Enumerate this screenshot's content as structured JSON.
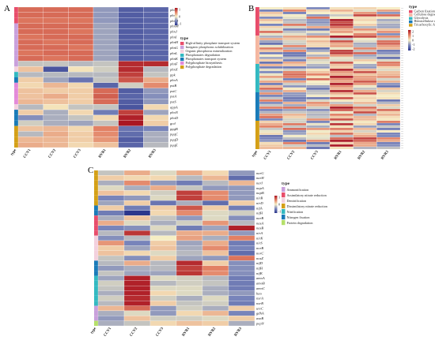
{
  "chart_data": [
    {
      "type": "heatmap",
      "panel_label": "A",
      "columns": [
        "type",
        "CCV1",
        "CCV2",
        "CCV3",
        "RVR1",
        "RVR2",
        "RVR3"
      ],
      "rows": [
        "phoC",
        "phoE",
        "phnD",
        "phnM",
        "phnJ",
        "phnI",
        "phnH",
        "phnG",
        "phnL",
        "phnK",
        "phnF",
        "phnX",
        "ppk",
        "phoA",
        "pstB",
        "pstC",
        "pstA",
        "pstS",
        "appA",
        "phoN",
        "phoD",
        "gcd",
        "ppgB",
        "pqqC",
        "pqqD",
        "pqqE"
      ],
      "row_groups": [
        0,
        0,
        0,
        1,
        1,
        1,
        1,
        1,
        1,
        1,
        1,
        2,
        3,
        4,
        5,
        5,
        5,
        5,
        2,
        4,
        4,
        4,
        6,
        6,
        6,
        6
      ],
      "values": [
        [
          1.2,
          1.2,
          1.2,
          -0.8,
          -1.5,
          -1.4
        ],
        [
          1.2,
          1.2,
          1.2,
          -0.8,
          -1.5,
          -1.4
        ],
        [
          1.1,
          1.1,
          1.1,
          -0.8,
          -1.5,
          -1.4
        ],
        [
          1.2,
          1.2,
          1.2,
          -0.7,
          -1.5,
          -1.4
        ],
        [
          1.2,
          1.2,
          1.1,
          -0.7,
          -1.5,
          -1.4
        ],
        [
          1.1,
          1.2,
          1.2,
          -0.7,
          -1.5,
          -1.4
        ],
        [
          1.2,
          1.1,
          1.2,
          -0.7,
          -1.5,
          -1.4
        ],
        [
          1.2,
          1.2,
          1.1,
          -0.7,
          -1.5,
          -1.4
        ],
        [
          1.1,
          1.2,
          1.2,
          -0.7,
          -1.5,
          -1.4
        ],
        [
          1.2,
          1.1,
          1.2,
          -0.7,
          -1.5,
          -1.4
        ],
        [
          -0.4,
          -0.4,
          -0.5,
          -0.4,
          1.8,
          1.8
        ],
        [
          0.4,
          -1.6,
          0.1,
          -0.3,
          1.8,
          -0.5
        ],
        [
          -0.5,
          -0.5,
          -0.5,
          -0.5,
          1.6,
          -0.4
        ],
        [
          0.3,
          -0.7,
          -1.2,
          -0.4,
          1.4,
          0.6
        ],
        [
          0.2,
          0.5,
          0.2,
          -1.4,
          -0.3,
          0.9
        ],
        [
          0.4,
          0.3,
          0.3,
          1.2,
          -1.5,
          -0.8
        ],
        [
          0.4,
          0.6,
          0.3,
          1.3,
          -1.4,
          -0.9
        ],
        [
          0.5,
          0.4,
          0.3,
          1.2,
          -1.5,
          -0.8
        ],
        [
          -0.5,
          0.1,
          -0.4,
          -0.4,
          -1.6,
          0.2
        ],
        [
          0.3,
          -0.6,
          0.2,
          -1.1,
          1.6,
          -0.7
        ],
        [
          -0.9,
          -0.6,
          -0.4,
          0.2,
          1.9,
          0.2
        ],
        [
          -0.3,
          -0.6,
          -0.7,
          -0.4,
          2.0,
          0.3
        ],
        [
          0.4,
          0.5,
          0.2,
          1.0,
          -1.2,
          -1.0
        ],
        [
          -0.5,
          0.6,
          0.3,
          0.9,
          -1.3,
          -0.6
        ],
        [
          0.5,
          0.5,
          0.3,
          0.8,
          -1.5,
          -0.6
        ],
        [
          0.6,
          0.5,
          0.2,
          0.4,
          -1.4,
          -0.5
        ]
      ],
      "legend_title": "type",
      "categories": [
        {
          "name": "High-affinity phosphate transport system",
          "color": "#e84d6b"
        },
        {
          "name": "Inorganic phosphorus solubilization",
          "color": "#c9a0dc"
        },
        {
          "name": "Organic phosphorus mineralization",
          "color": "#f3d1de"
        },
        {
          "name": "Phosphonates degradation",
          "color": "#33b9c1"
        },
        {
          "name": "Phosphonates transport system",
          "color": "#1a7bb8"
        },
        {
          "name": "Polyphosphate biosynthesis",
          "color": "#e38ad9"
        },
        {
          "name": "Polyphosphate degradation",
          "color": "#d4a017"
        }
      ],
      "colorbar_ticks": [
        "1",
        "0",
        "-1"
      ],
      "colorbar_range": [
        -2,
        2
      ]
    },
    {
      "type": "heatmap",
      "panel_label": "B",
      "columns": [
        "type",
        "CCV1",
        "CCV2",
        "CCV3",
        "RVR1",
        "RVR2",
        "RVR3"
      ],
      "row_count": 60,
      "row_label_visible": false,
      "legend_title": "type",
      "categories": [
        {
          "name": "Carbon fixation",
          "color": "#e84d6b"
        },
        {
          "name": "Cellulose degradation",
          "color": "#f5b7a1"
        },
        {
          "name": "Glycolysis",
          "color": "#33b9c1"
        },
        {
          "name": "Hemicellulose degradation",
          "color": "#1a7bb8"
        },
        {
          "name": "Tricarboxylic Acid Cycle",
          "color": "#d4a017"
        }
      ],
      "colorbar_ticks": [
        "2",
        "1",
        "0",
        "-1",
        "-2"
      ],
      "colorbar_range": [
        -2,
        2
      ]
    },
    {
      "type": "heatmap",
      "panel_label": "C",
      "columns": [
        "type",
        "CCV1",
        "CCV2",
        "CCV3",
        "RVR1",
        "RVR2",
        "RVR3"
      ],
      "rows": [
        "narG",
        "narH",
        "narI",
        "napA",
        "napB",
        "nirB",
        "nirD",
        "nifA",
        "nifH",
        "narB",
        "nasA",
        "nasB",
        "nirA",
        "nirK",
        "nirS",
        "norB",
        "norC",
        "nosZ",
        "nifD",
        "nifH",
        "nifK",
        "amoA",
        "amoB",
        "amoC",
        "hao",
        "nxrA",
        "nxrB",
        "ureC",
        "gdhA",
        "asnB",
        "pepN"
      ],
      "row_groups": [
        3,
        3,
        3,
        3,
        3,
        3,
        3,
        5,
        5,
        1,
        1,
        1,
        1,
        2,
        2,
        2,
        2,
        2,
        5,
        5,
        5,
        4,
        4,
        4,
        4,
        4,
        4,
        0,
        0,
        0,
        6
      ],
      "values": [
        [
          -0.4,
          0.6,
          -0.2,
          0.6,
          0.2,
          -0.8
        ],
        [
          0.3,
          0.2,
          0.2,
          -0.5,
          0.5,
          -1.3
        ],
        [
          -0.6,
          0.9,
          -0.8,
          -1.1,
          -0.5,
          0.5
        ],
        [
          -0.2,
          -0.6,
          0.6,
          -0.4,
          -0.8,
          -0.8
        ],
        [
          0.4,
          0.2,
          -0.3,
          1.6,
          0.9,
          -0.8
        ],
        [
          -1.0,
          -0.8,
          -0.2,
          1.6,
          0.9,
          -0.8
        ],
        [
          -0.7,
          0.3,
          -1.2,
          -0.6,
          -1.3,
          0.3
        ],
        [
          0.3,
          -1.1,
          0.3,
          1.4,
          0.3,
          -1.1
        ],
        [
          -1.1,
          -2.2,
          0.2,
          0.9,
          -0.2,
          -0.3
        ],
        [
          -0.6,
          0.4,
          -0.4,
          -0.8,
          -0.2,
          -0.9
        ],
        [
          0.6,
          -0.2,
          -0.6,
          -0.3,
          0.8,
          -0.5
        ],
        [
          -1.0,
          -0.9,
          -0.2,
          -1.1,
          -0.7,
          1.9
        ],
        [
          -0.5,
          1.7,
          -0.5,
          0.6,
          0.6,
          -0.8
        ],
        [
          -0.9,
          -0.5,
          0.0,
          0.7,
          -0.6,
          1.0
        ],
        [
          0.8,
          -1.0,
          0.3,
          -0.7,
          0.6,
          -1.1
        ],
        [
          0.3,
          -0.7,
          0.4,
          -0.6,
          0.9,
          -1.0
        ],
        [
          0.4,
          0.2,
          -0.2,
          -0.5,
          0.4,
          -1.3
        ],
        [
          -0.4,
          -0.9,
          0.3,
          -0.7,
          -0.8,
          1.1
        ],
        [
          -0.5,
          0.6,
          -0.5,
          1.8,
          0.3,
          -0.9
        ],
        [
          -0.8,
          -0.6,
          -0.5,
          1.6,
          1.0,
          -0.9
        ],
        [
          -0.4,
          -0.7,
          -0.7,
          1.7,
          0.9,
          -0.9
        ],
        [
          -0.7,
          1.9,
          -0.2,
          -0.3,
          -0.5,
          -1.1
        ],
        [
          -0.3,
          1.9,
          -0.5,
          -0.3,
          -0.4,
          -1.1
        ],
        [
          -0.4,
          1.9,
          -0.2,
          -0.2,
          -0.6,
          -1.1
        ],
        [
          -0.6,
          1.9,
          0.2,
          -0.2,
          -0.6,
          -0.8
        ],
        [
          -0.3,
          1.8,
          -0.3,
          -0.6,
          -0.2,
          -1.0
        ],
        [
          -0.5,
          1.9,
          0.3,
          -0.4,
          -0.3,
          -1.1
        ],
        [
          0.5,
          1.2,
          -0.8,
          -0.3,
          -0.6,
          0.3
        ],
        [
          -0.6,
          -0.2,
          -0.8,
          0.2,
          0.5,
          -1.0
        ],
        [
          -0.8,
          0.4,
          -0.3,
          -0.3,
          -0.2,
          0.3
        ],
        [
          -0.6,
          -0.4,
          0.2,
          0.4,
          0.3,
          -0.6
        ]
      ],
      "legend_title": "type",
      "categories": [
        {
          "name": "Ammonification",
          "color": "#c9a0dc"
        },
        {
          "name": "Assimilatory nitrate reduction",
          "color": "#e84d6b"
        },
        {
          "name": "Denitrification",
          "color": "#f3d1de"
        },
        {
          "name": "Dissimilatory nitrate reduction",
          "color": "#d4a017"
        },
        {
          "name": "Nitrification",
          "color": "#33b9c1"
        },
        {
          "name": "Nitrogen fixation",
          "color": "#1a7bb8"
        },
        {
          "name": "Protein degradation",
          "color": "#b5e06a"
        }
      ],
      "colorbar_ticks": [
        "1",
        "0",
        "-1"
      ],
      "colorbar_range": [
        -2,
        2
      ]
    }
  ]
}
